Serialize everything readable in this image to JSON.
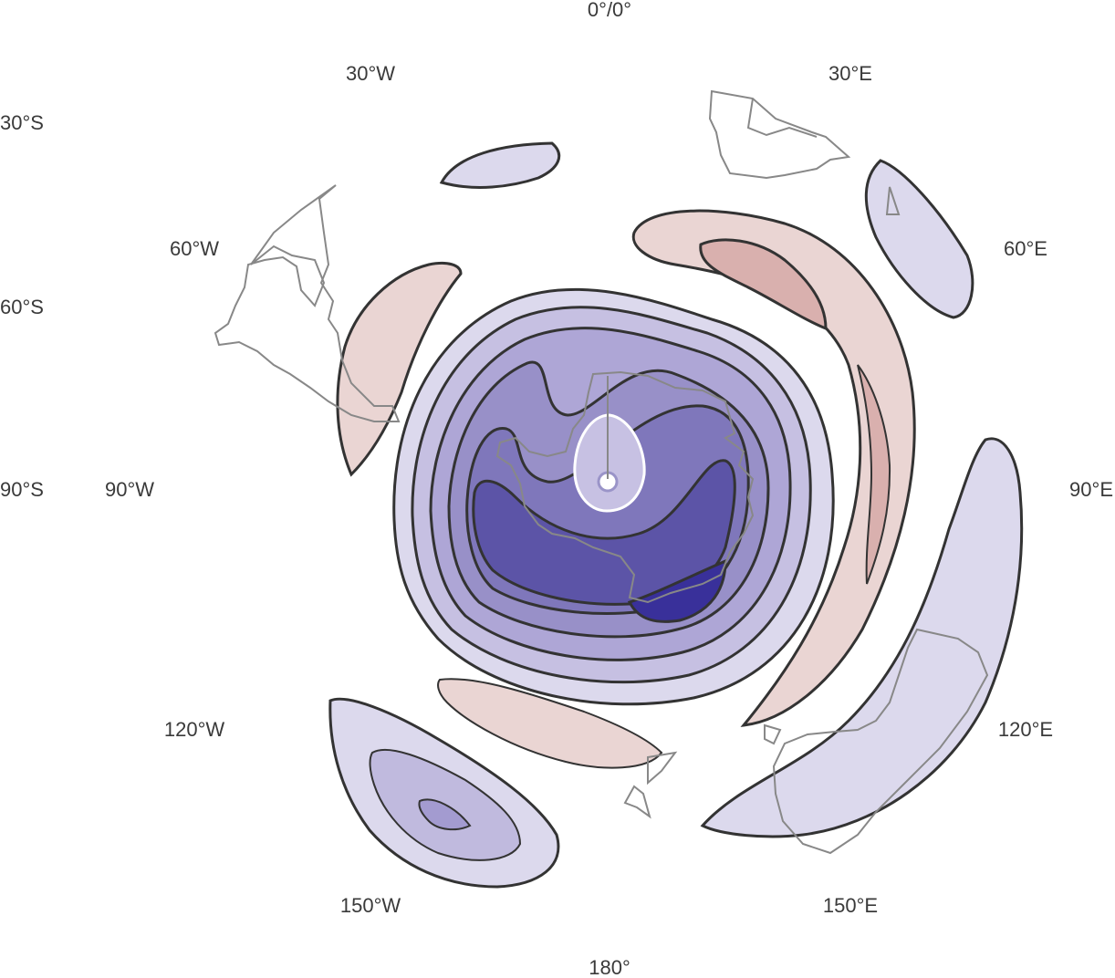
{
  "map": {
    "projection": "south-polar-stereographic",
    "field": "anomaly-contours",
    "colors": {
      "negative_levels": [
        "#dcd9ed",
        "#c0bade",
        "#9f97cc",
        "#7d74b8",
        "#5b53a6",
        "#39309a"
      ],
      "positive_levels": [
        "#ead5d3",
        "#d9b0ae"
      ],
      "contour_line": "#333333",
      "coastline": "#888888"
    },
    "labels": {
      "top": "0°/0°",
      "lon_30w": "30°W",
      "lon_30e": "30°E",
      "lat_30s": "30°S",
      "lon_60w": "60°W",
      "lon_60e": "60°E",
      "lat_60s": "60°S",
      "lat_90s": "90°S",
      "lon_90w": "90°W",
      "lon_90e": "90°E",
      "lon_120w": "120°W",
      "lon_120e": "120°E",
      "lon_150w": "150°W",
      "lon_150e": "150°E",
      "bottom": "180°"
    }
  }
}
